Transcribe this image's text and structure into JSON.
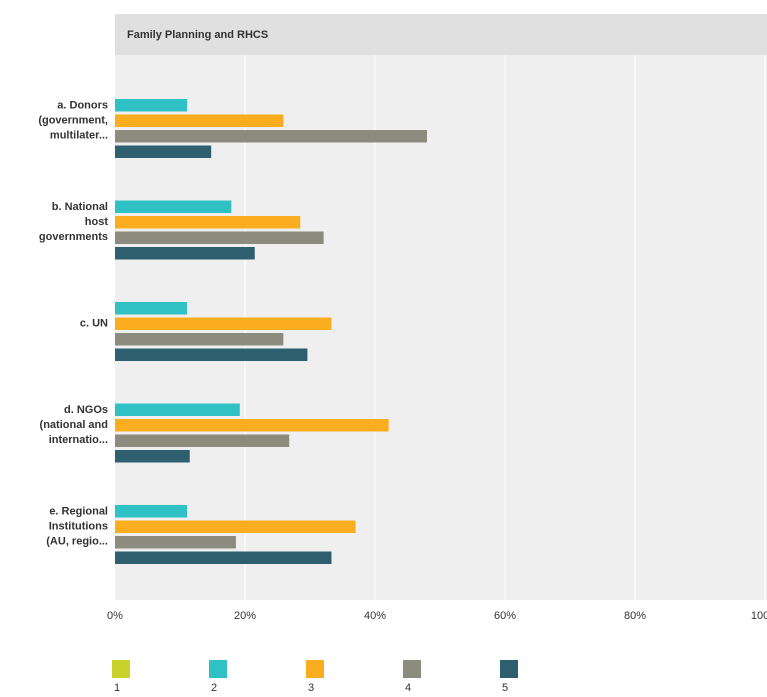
{
  "chart_data": {
    "type": "barh",
    "title": "Family Planning and RHCS",
    "categories": [
      [
        "a. Donors",
        "(government,",
        "multilater..."
      ],
      [
        "b. National",
        "host",
        "governments"
      ],
      [
        "c. UN"
      ],
      [
        "d. NGOs",
        "(national and",
        "internatio..."
      ],
      [
        "e. Regional",
        "Institutions",
        "(AU, regio..."
      ]
    ],
    "series": [
      {
        "name": "1",
        "color": "#c9d22b",
        "values": [
          0,
          0,
          0,
          0,
          0
        ]
      },
      {
        "name": "2",
        "color": "#2fc1c4",
        "values": [
          11.1,
          17.9,
          11.1,
          19.2,
          11.1
        ]
      },
      {
        "name": "3",
        "color": "#f9ad1f",
        "values": [
          25.9,
          28.5,
          33.3,
          42.1,
          37.0
        ]
      },
      {
        "name": "4",
        "color": "#8b8b7e",
        "values": [
          48.0,
          32.1,
          25.9,
          26.8,
          18.6
        ]
      },
      {
        "name": "5",
        "color": "#2e5f6f",
        "values": [
          14.8,
          21.5,
          29.6,
          11.5,
          33.3
        ]
      }
    ],
    "xlim": [
      0,
      100
    ],
    "xticks": [
      {
        "value": 0,
        "label": "0%"
      },
      {
        "value": 20,
        "label": "20%"
      },
      {
        "value": 40,
        "label": "40%"
      },
      {
        "value": 60,
        "label": "60%"
      },
      {
        "value": 80,
        "label": "80%"
      },
      {
        "value": 100,
        "label": "100%"
      }
    ],
    "grid": true,
    "legend": "bottom"
  }
}
